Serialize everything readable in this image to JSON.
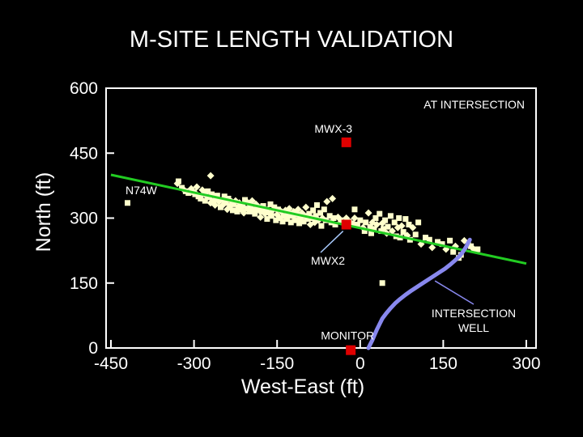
{
  "chart_data": {
    "type": "scatter",
    "title": "M-SITE LENGTH VALIDATION",
    "xlabel": "West-East (ft)",
    "ylabel": "North (ft)",
    "xlim": [
      -450,
      300
    ],
    "ylim": [
      0,
      600
    ],
    "x_ticks": [
      "-450",
      "-300",
      "-150",
      "0",
      "150",
      "300"
    ],
    "y_ticks": [
      "0",
      "150",
      "300",
      "450",
      "600"
    ],
    "grid": false,
    "colors": {
      "background": "#000000",
      "points": "#ffffcc",
      "trend": "#22cc22",
      "well": "#8888ee",
      "markers": "#e00000",
      "frame": "#ffffff"
    },
    "scatter_points": [
      [
        -330,
        380
      ],
      [
        -328,
        385
      ],
      [
        -322,
        370
      ],
      [
        -318,
        365
      ],
      [
        -315,
        362
      ],
      [
        -310,
        358
      ],
      [
        -305,
        368
      ],
      [
        -300,
        360
      ],
      [
        -298,
        355
      ],
      [
        -295,
        372
      ],
      [
        -292,
        350
      ],
      [
        -288,
        345
      ],
      [
        -285,
        365
      ],
      [
        -282,
        358
      ],
      [
        -280,
        340
      ],
      [
        -278,
        352
      ],
      [
        -275,
        362
      ],
      [
        -272,
        348
      ],
      [
        -270,
        335
      ],
      [
        -268,
        355
      ],
      [
        -265,
        340
      ],
      [
        -262,
        330
      ],
      [
        -260,
        345
      ],
      [
        -258,
        352
      ],
      [
        -255,
        338
      ],
      [
        -252,
        325
      ],
      [
        -250,
        342
      ],
      [
        -248,
        330
      ],
      [
        -245,
        350
      ],
      [
        -242,
        335
      ],
      [
        -240,
        320
      ],
      [
        -238,
        345
      ],
      [
        -235,
        328
      ],
      [
        -232,
        338
      ],
      [
        -230,
        318
      ],
      [
        -228,
        332
      ],
      [
        -225,
        340
      ],
      [
        -222,
        315
      ],
      [
        -220,
        325
      ],
      [
        -218,
        335
      ],
      [
        -215,
        320
      ],
      [
        -212,
        330
      ],
      [
        -210,
        312
      ],
      [
        -208,
        342
      ],
      [
        -205,
        322
      ],
      [
        -202,
        335
      ],
      [
        -200,
        315
      ],
      [
        -198,
        328
      ],
      [
        -195,
        340
      ],
      [
        -192,
        320
      ],
      [
        -190,
        310
      ],
      [
        -188,
        332
      ],
      [
        -185,
        318
      ],
      [
        -182,
        325
      ],
      [
        -180,
        302
      ],
      [
        -178,
        315
      ],
      [
        -175,
        328
      ],
      [
        -172,
        310
      ],
      [
        -170,
        320
      ],
      [
        -168,
        298
      ],
      [
        -165,
        312
      ],
      [
        -162,
        332
      ],
      [
        -160,
        305
      ],
      [
        -158,
        318
      ],
      [
        -155,
        325
      ],
      [
        -152,
        295
      ],
      [
        -150,
        308
      ],
      [
        -148,
        320
      ],
      [
        -145,
        300
      ],
      [
        -142,
        315
      ],
      [
        -140,
        292
      ],
      [
        -138,
        305
      ],
      [
        -135,
        318
      ],
      [
        -132,
        298
      ],
      [
        -130,
        310
      ],
      [
        -128,
        322
      ],
      [
        -125,
        290
      ],
      [
        -122,
        305
      ],
      [
        -120,
        315
      ],
      [
        -118,
        295
      ],
      [
        -115,
        308
      ],
      [
        -112,
        320
      ],
      [
        -110,
        288
      ],
      [
        -108,
        300
      ],
      [
        -105,
        312
      ],
      [
        -102,
        292
      ],
      [
        -100,
        305
      ],
      [
        -98,
        325
      ],
      [
        -95,
        298
      ],
      [
        -92,
        310
      ],
      [
        -90,
        285
      ],
      [
        -88,
        300
      ],
      [
        -85,
        318
      ],
      [
        -82,
        290
      ],
      [
        -80,
        305
      ],
      [
        -78,
        330
      ],
      [
        -75,
        295
      ],
      [
        -72,
        312
      ],
      [
        -70,
        282
      ],
      [
        -68,
        300
      ],
      [
        -65,
        320
      ],
      [
        -62,
        295
      ],
      [
        -60,
        338
      ],
      [
        -55,
        305
      ],
      [
        -52,
        290
      ],
      [
        -50,
        345
      ],
      [
        -48,
        300
      ],
      [
        -45,
        285
      ],
      [
        -40,
        302
      ],
      [
        -35,
        295
      ],
      [
        -30,
        290
      ],
      [
        -25,
        300
      ],
      [
        -20,
        292
      ],
      [
        -15,
        288
      ],
      [
        -10,
        300
      ],
      [
        -5,
        285
      ],
      [
        0,
        295
      ],
      [
        5,
        278
      ],
      [
        8,
        270
      ],
      [
        10,
        290
      ],
      [
        15,
        312
      ],
      [
        18,
        280
      ],
      [
        20,
        265
      ],
      [
        22,
        290
      ],
      [
        25,
        275
      ],
      [
        28,
        300
      ],
      [
        30,
        285
      ],
      [
        35,
        310
      ],
      [
        38,
        270
      ],
      [
        40,
        288
      ],
      [
        42,
        275
      ],
      [
        45,
        295
      ],
      [
        48,
        265
      ],
      [
        50,
        280
      ],
      [
        55,
        305
      ],
      [
        58,
        270
      ],
      [
        62,
        290
      ],
      [
        65,
        258
      ],
      [
        68,
        278
      ],
      [
        70,
        300
      ],
      [
        72,
        255
      ],
      [
        75,
        282
      ],
      [
        78,
        268
      ],
      [
        82,
        298
      ],
      [
        85,
        260
      ],
      [
        88,
        285
      ],
      [
        90,
        250
      ],
      [
        95,
        278
      ],
      [
        100,
        262
      ],
      [
        105,
        290
      ],
      [
        110,
        240
      ],
      [
        118,
        255
      ],
      [
        125,
        250
      ],
      [
        130,
        232
      ],
      [
        140,
        245
      ],
      [
        148,
        240
      ],
      [
        155,
        228
      ],
      [
        162,
        248
      ],
      [
        168,
        222
      ],
      [
        172,
        235
      ],
      [
        178,
        208
      ],
      [
        182,
        215
      ],
      [
        188,
        248
      ],
      [
        195,
        238
      ],
      [
        200,
        235
      ],
      [
        205,
        228
      ],
      [
        212,
        228
      ],
      [
        -420,
        335
      ],
      [
        -270,
        398
      ],
      [
        -10,
        320
      ],
      [
        40,
        150
      ]
    ],
    "trend_line": {
      "label": "N74W",
      "x": [
        -450,
        300
      ],
      "y": [
        400,
        195
      ]
    },
    "well_path": {
      "label_line1": "INTERSECTION",
      "label_line2": "WELL",
      "x": [
        15,
        18,
        22,
        26,
        30,
        35,
        40,
        47,
        55,
        63,
        72,
        82,
        93,
        105,
        117,
        129,
        141,
        153,
        163,
        172,
        180,
        186,
        191,
        195,
        198
      ],
      "y": [
        0,
        8,
        18,
        30,
        42,
        55,
        68,
        80,
        92,
        103,
        113,
        123,
        133,
        143,
        153,
        163,
        173,
        183,
        193,
        203,
        213,
        223,
        233,
        243,
        250
      ]
    },
    "markers": [
      {
        "label": "MWX-3",
        "x": -25,
        "y": 475
      },
      {
        "label": "MWX2",
        "x": -25,
        "y": 285
      },
      {
        "label": "MONITOR",
        "x": -17,
        "y": -5
      }
    ],
    "annotations": {
      "corner_label": "AT INTERSECTION"
    }
  }
}
